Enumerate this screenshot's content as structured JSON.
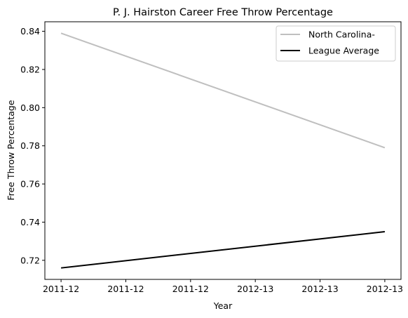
{
  "chart_data": {
    "type": "line",
    "title": "P. J. Hairston Career Free Throw Percentage",
    "xlabel": "Year",
    "ylabel": "Free Throw Percentage",
    "x_tick_labels": [
      "2011-12",
      "2011-12",
      "2011-12",
      "2012-13",
      "2012-13",
      "2012-13"
    ],
    "x": [
      0,
      1
    ],
    "xlim": [
      -0.05,
      1.05
    ],
    "ylim": [
      0.71,
      0.845
    ],
    "yticks": [
      0.72,
      0.74,
      0.76,
      0.78,
      0.8,
      0.82,
      0.84
    ],
    "grid": false,
    "legend_position": "top-right",
    "series": [
      {
        "name": "North Carolina-",
        "values": [
          0.839,
          0.779
        ],
        "color": "#bfbfbf"
      },
      {
        "name": "League Average",
        "values": [
          0.716,
          0.735
        ],
        "color": "#000000"
      }
    ]
  }
}
